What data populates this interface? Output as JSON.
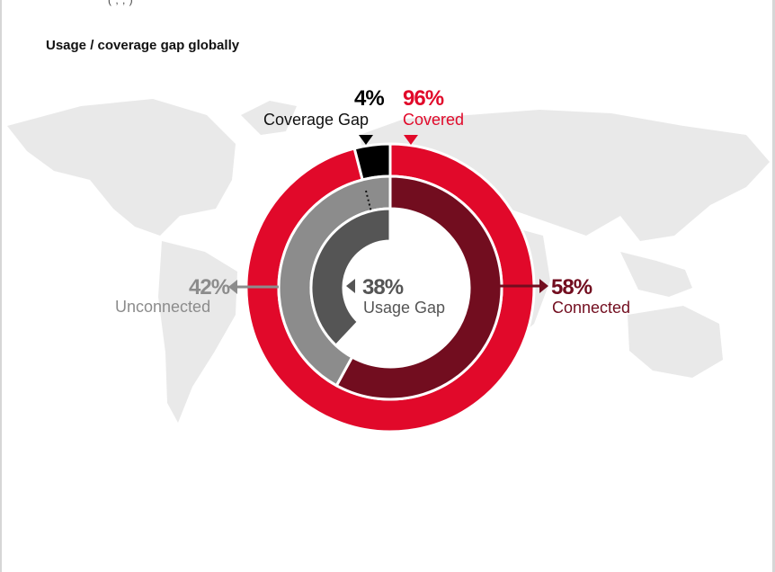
{
  "page": {
    "top_fragment": "(                   ,                  ,                                                 )"
  },
  "chart_data": {
    "type": "pie",
    "title": "Usage / coverage gap globally",
    "rings": [
      {
        "name": "coverage",
        "slices": [
          {
            "label": "Covered",
            "value": 96,
            "display": "96%",
            "color": "#e1092a"
          },
          {
            "label": "Coverage Gap",
            "value": 4,
            "display": "4%",
            "color": "#000000"
          }
        ]
      },
      {
        "name": "usage",
        "slices": [
          {
            "label": "Connected",
            "value": 58,
            "display": "58%",
            "color": "#720d1f"
          },
          {
            "label": "Unconnected",
            "value": 42,
            "display": "42%",
            "color": "#8c8c8c"
          }
        ]
      },
      {
        "name": "usage-gap",
        "slices": [
          {
            "label": "Usage Gap",
            "value": 38,
            "display": "38%",
            "color": "#555555"
          }
        ]
      }
    ],
    "colors": {
      "covered_text": "#e1092a",
      "connected_text": "#720d1f",
      "unconnected_text": "#8c8c8c",
      "gap_text": "#555555",
      "map_fill": "#e9e9e9"
    }
  }
}
